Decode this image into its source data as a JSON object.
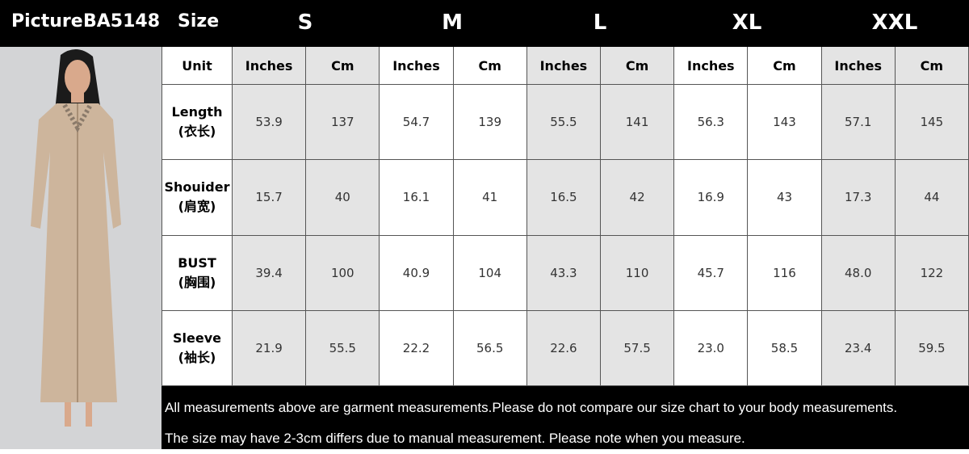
{
  "header": {
    "picture_label": "Picture",
    "model": "BA5148",
    "size_label": "Size",
    "sizes": [
      "S",
      "M",
      "L",
      "XL",
      "XXL"
    ]
  },
  "table": {
    "unit_label": "Unit",
    "units": [
      "Inches",
      "Cm",
      "Inches",
      "Cm",
      "Inches",
      "Cm",
      "Inches",
      "Cm",
      "Inches",
      "Cm"
    ],
    "rows": [
      {
        "name": "Length",
        "name_cn": "(衣长)",
        "values": [
          "53.9",
          "137",
          "54.7",
          "139",
          "55.5",
          "141",
          "56.3",
          "143",
          "57.1",
          "145"
        ]
      },
      {
        "name": "Shouider",
        "name_cn": "(肩宽)",
        "values": [
          "15.7",
          "40",
          "16.1",
          "41",
          "16.5",
          "42",
          "16.9",
          "43",
          "17.3",
          "44"
        ]
      },
      {
        "name": "BUST",
        "name_cn": "(胸围)",
        "values": [
          "39.4",
          "100",
          "40.9",
          "104",
          "43.3",
          "110",
          "45.7",
          "116",
          "48.0",
          "122"
        ]
      },
      {
        "name": "Sleeve",
        "name_cn": "(袖长)",
        "values": [
          "21.9",
          "55.5",
          "22.2",
          "56.5",
          "22.6",
          "57.5",
          "23.0",
          "58.5",
          "23.4",
          "59.5"
        ]
      }
    ],
    "shade_color": "#e4e4e4"
  },
  "footer": {
    "line1": "All measurements above are garment measurements.Please do not compare our size chart to your body measurements.",
    "line2": "The size may have 2-3cm differs due to manual measurement. Please note when you measure."
  }
}
